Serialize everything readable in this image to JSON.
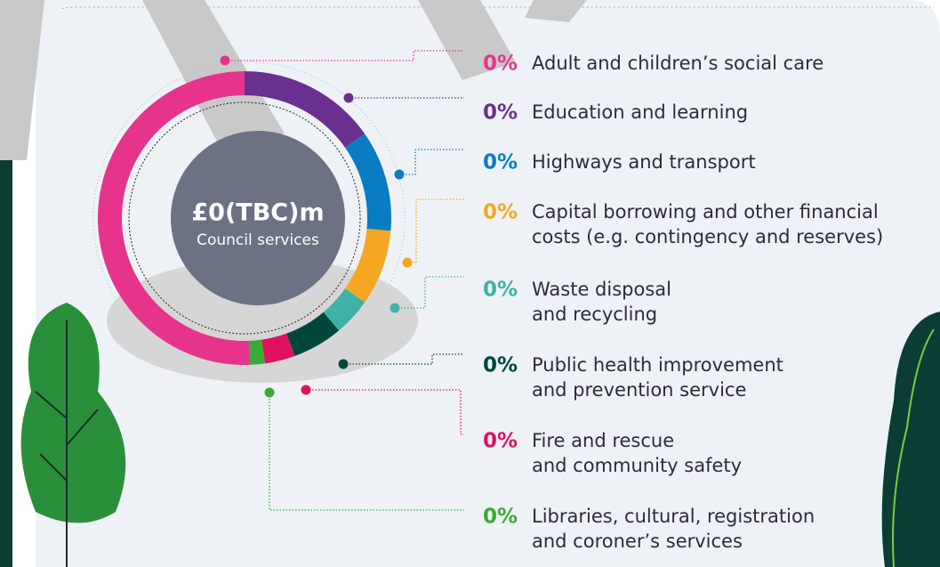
{
  "center": {
    "amount": "£0(TBC)m",
    "caption": "Council services"
  },
  "items": [
    {
      "percent": "0%",
      "color": "#e6348c",
      "lines": [
        "Adult and children’s social care"
      ]
    },
    {
      "percent": "0%",
      "color": "#6a3090",
      "lines": [
        "Education and learning"
      ]
    },
    {
      "percent": "0%",
      "color": "#0a7cc1",
      "lines": [
        "Highways and transport"
      ]
    },
    {
      "percent": "0%",
      "color": "#f5a623",
      "lines": [
        "Capital borrowing and other financial",
        "costs (e.g. contingency and reserves)"
      ]
    },
    {
      "percent": "0%",
      "color": "#3fb1a6",
      "lines": [
        "Waste disposal",
        "and recycling"
      ]
    },
    {
      "percent": "0%",
      "color": "#00473a",
      "lines": [
        "Public health improvement",
        "and prevention service"
      ]
    },
    {
      "percent": "0%",
      "color": "#e0115f",
      "lines": [
        "Fire and rescue",
        "and community safety"
      ]
    },
    {
      "percent": "0%",
      "color": "#3aaa35",
      "lines": [
        "Libraries, cultural, registration",
        "and coroner’s services"
      ]
    }
  ]
}
